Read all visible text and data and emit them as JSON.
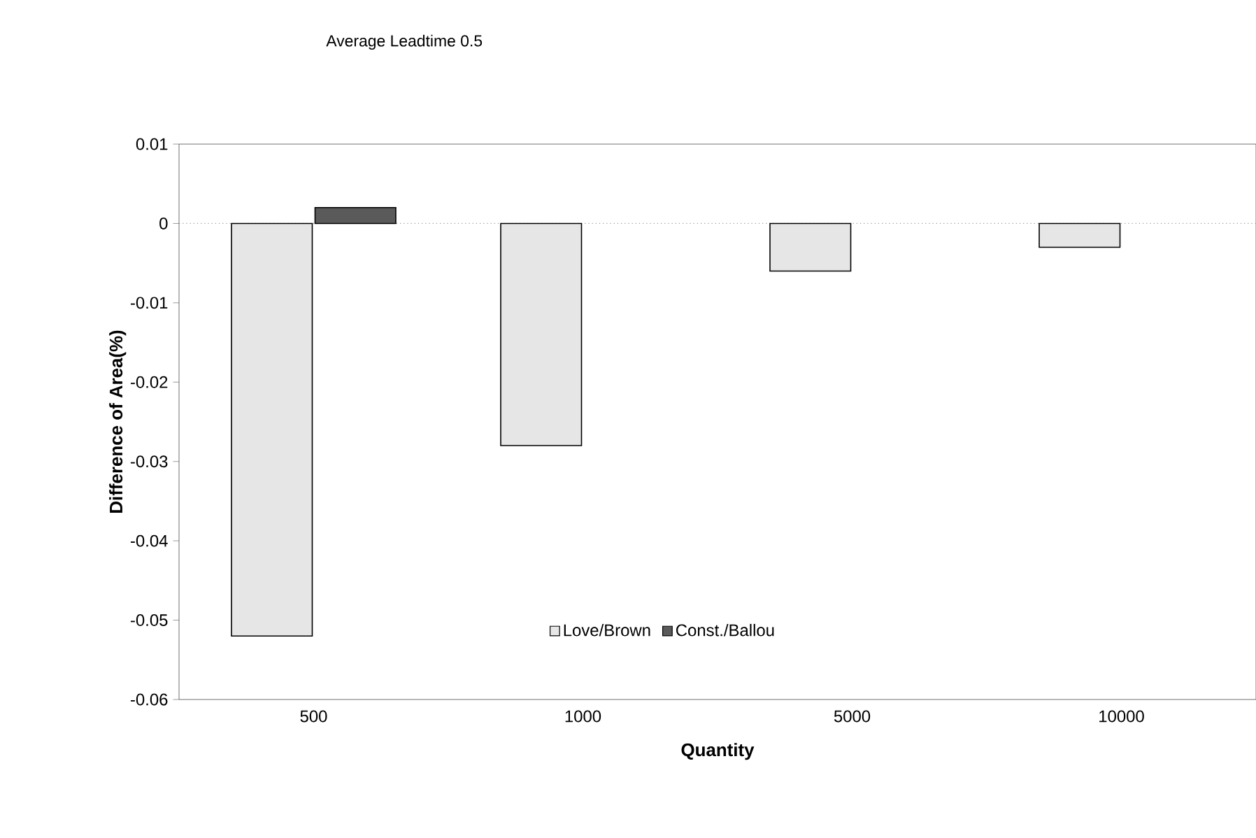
{
  "chart_data": {
    "type": "bar",
    "title": "Average Leadtime 0.5",
    "xlabel": "Quantity",
    "ylabel": "Difference of Area(%)",
    "categories": [
      "500",
      "1000",
      "5000",
      "10000"
    ],
    "series": [
      {
        "name": "Love/Brown",
        "color": "#e6e6e6",
        "values": [
          -0.052,
          -0.028,
          -0.006,
          -0.003
        ]
      },
      {
        "name": "Const./Ballou",
        "color": "#5a5a5a",
        "values": [
          0.002,
          null,
          null,
          null
        ]
      }
    ],
    "ylim": [
      -0.06,
      0.01
    ],
    "yticks": [
      -0.06,
      -0.05,
      -0.04,
      -0.03,
      -0.02,
      -0.01,
      0,
      0.01
    ],
    "ref_lines": [
      {
        "axis": "y",
        "value": 0,
        "color": "#999999",
        "line_style": "dotted"
      }
    ],
    "legend": "bottom"
  }
}
